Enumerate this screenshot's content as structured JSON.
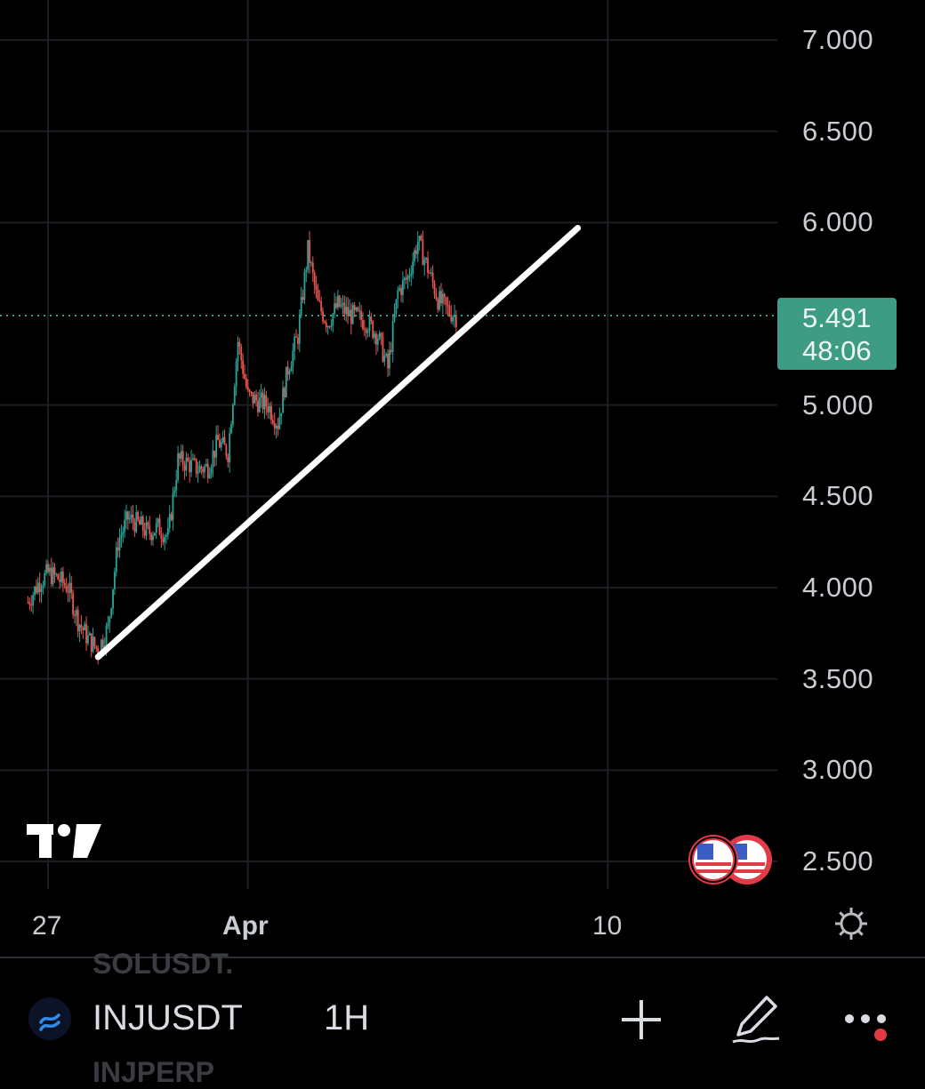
{
  "chart_data": {
    "type": "candlestick",
    "symbol": "INJUSDT",
    "interval": "1H",
    "y_ticks": [
      "7.000",
      "6.500",
      "6.000",
      "5.000",
      "4.500",
      "4.000",
      "3.500",
      "3.000",
      "2.500"
    ],
    "x_ticks": [
      "27",
      "Apr",
      "10"
    ],
    "ylim": [
      2.45,
      7.15
    ],
    "last_price": "5.491",
    "countdown": "48:06",
    "grid": true,
    "colors": {
      "up": "#26a69a",
      "down": "#ef5350",
      "last_badge": "#3f9c84",
      "trendline": "#ffffff"
    },
    "close_path": [
      [
        "Mar 26 12:00",
        3.92
      ],
      [
        "Mar 26 18:00",
        4.02
      ],
      [
        "Mar 27 00:00",
        4.08
      ],
      [
        "Mar 27 06:00",
        4.05
      ],
      [
        "Mar 27 12:00",
        4.0
      ],
      [
        "Mar 27 18:00",
        3.82
      ],
      [
        "Mar 28 00:00",
        3.72
      ],
      [
        "Mar 28 06:00",
        3.66
      ],
      [
        "Mar 28 12:00",
        3.78
      ],
      [
        "Mar 28 18:00",
        4.25
      ],
      [
        "Mar 29 00:00",
        4.38
      ],
      [
        "Mar 29 06:00",
        4.35
      ],
      [
        "Mar 29 12:00",
        4.3
      ],
      [
        "Mar 29 18:00",
        4.33
      ],
      [
        "Mar 30 00:00",
        4.28
      ],
      [
        "Mar 30 06:00",
        4.7
      ],
      [
        "Mar 30 12:00",
        4.68
      ],
      [
        "Mar 30 18:00",
        4.65
      ],
      [
        "Mar 31 00:00",
        4.66
      ],
      [
        "Mar 31 06:00",
        4.8
      ],
      [
        "Mar 31 12:00",
        4.74
      ],
      [
        "Mar 31 18:00",
        5.35
      ],
      [
        "Apr 1 00:00",
        5.05
      ],
      [
        "Apr 1 06:00",
        5.02
      ],
      [
        "Apr 1 12:00",
        5.0
      ],
      [
        "Apr 1 18:00",
        4.9
      ],
      [
        "Apr 2 00:00",
        5.2
      ],
      [
        "Apr 2 06:00",
        5.38
      ],
      [
        "Apr 2 12:00",
        5.85
      ],
      [
        "Apr 2 18:00",
        5.55
      ],
      [
        "Apr 3 00:00",
        5.45
      ],
      [
        "Apr 3 06:00",
        5.55
      ],
      [
        "Apr 3 12:00",
        5.5
      ],
      [
        "Apr 3 18:00",
        5.48
      ],
      [
        "Apr 4 00:00",
        5.45
      ],
      [
        "Apr 4 06:00",
        5.38
      ],
      [
        "Apr 4 12:00",
        5.2
      ],
      [
        "Apr 4 18:00",
        5.62
      ],
      [
        "Apr 5 00:00",
        5.7
      ],
      [
        "Apr 5 06:00",
        5.9
      ],
      [
        "Apr 5 12:00",
        5.75
      ],
      [
        "Apr 5 18:00",
        5.58
      ],
      [
        "Apr 6 00:00",
        5.52
      ],
      [
        "Apr 6 06:00",
        5.48
      ]
    ],
    "trendline": {
      "from": [
        "Mar 28 06:00",
        3.62
      ],
      "to": [
        "Apr 9 06:00",
        5.97
      ]
    }
  },
  "toolbar": {
    "symbol": "INJUSDT",
    "interval": "1H",
    "ghost_above": "SOLUSDT.",
    "ghost_below": "INJPERP"
  },
  "icons": {
    "logo": "tradingview-logo",
    "events": "us-flag-icons",
    "settings": "gear-icon",
    "add": "plus-icon",
    "draw": "pen-icon",
    "more": "more-dots-icon"
  }
}
